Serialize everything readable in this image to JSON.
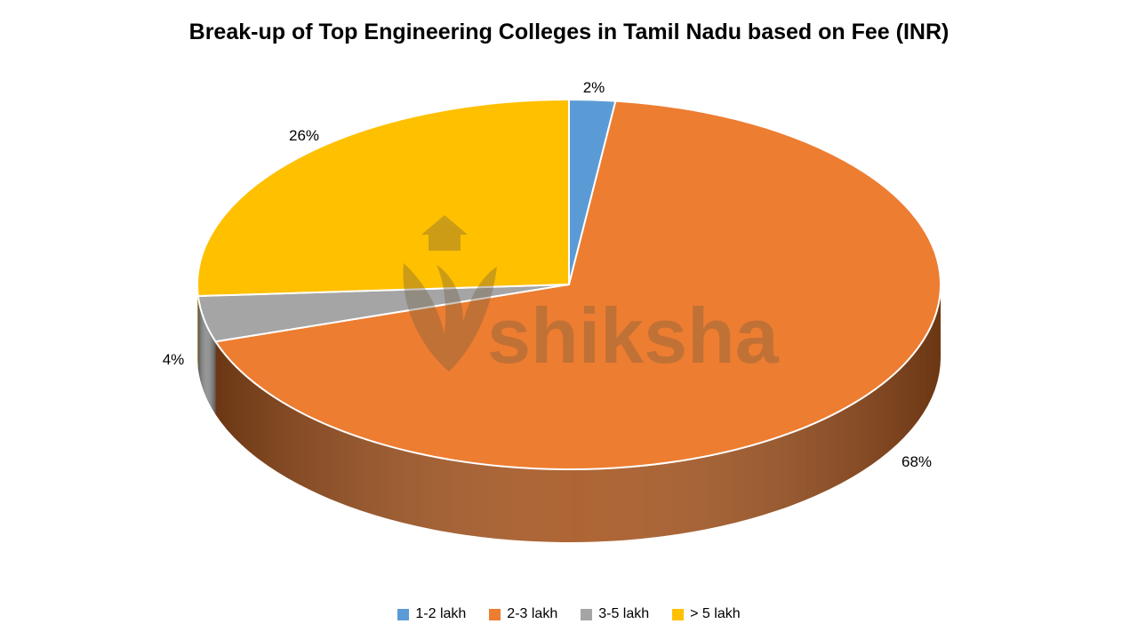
{
  "title": "Break-up of Top Engineering Colleges in Tamil Nadu based on Fee (INR)",
  "watermark": {
    "text": "shiksha"
  },
  "chart_data": {
    "type": "pie",
    "style": "3d",
    "title": "Break-up of Top Engineering Colleges in Tamil Nadu based on Fee (INR)",
    "unit": "%",
    "direction": "clockwise",
    "start_angle_deg": 0,
    "legend_position": "bottom",
    "slices": [
      {
        "label": "1-2 lakh",
        "value": 2,
        "data_label": "2%",
        "color": "#5B9BD5",
        "side_color": "#3E78B0"
      },
      {
        "label": "2-3 lakh",
        "value": 68,
        "data_label": "68%",
        "color": "#ED7D31",
        "side_color": "#A5541E"
      },
      {
        "label": "3-5 lakh",
        "value": 4,
        "data_label": "4%",
        "color": "#A5A5A5",
        "side_color": "#8A8A8A"
      },
      {
        "label": "> 5 lakh",
        "value": 26,
        "data_label": "26%",
        "color": "#FFC000",
        "side_color": "#BF9000"
      }
    ]
  }
}
